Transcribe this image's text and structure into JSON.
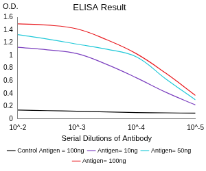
{
  "chart_data": {
    "type": "line",
    "title": "ELISA Result",
    "ylabel": "O.D.",
    "xlabel": "Serial Dilutions of Antibody",
    "log": "x",
    "x": [
      0.01,
      0.00316,
      0.001,
      0.000316,
      0.0001,
      3.16e-05,
      1e-05
    ],
    "series": [
      {
        "name": "Control Antigen = 100ng",
        "color": "#000000",
        "values": [
          0.14,
          0.13,
          0.12,
          0.11,
          0.1,
          0.095,
          0.09
        ]
      },
      {
        "name": "Antigen= 10ng",
        "color": "#7b3fbf",
        "values": [
          1.13,
          1.09,
          1.03,
          0.86,
          0.65,
          0.42,
          0.22
        ]
      },
      {
        "name": "Antigen= 50ng",
        "color": "#1fc8d8",
        "values": [
          1.33,
          1.26,
          1.18,
          1.1,
          0.98,
          0.63,
          0.3
        ]
      },
      {
        "name": "Antigen= 100ng",
        "color": "#e8191e",
        "values": [
          1.5,
          1.48,
          1.42,
          1.25,
          1.03,
          0.72,
          0.37
        ]
      }
    ],
    "xlim": [
      0.01,
      1e-05
    ],
    "xticks": [
      {
        "value": 0.01,
        "label": "10^-2"
      },
      {
        "value": 0.001,
        "label": "10^-3"
      },
      {
        "value": 0.0001,
        "label": "10^-4"
      },
      {
        "value": 1e-05,
        "label": "10^-5"
      }
    ],
    "ylim": [
      0,
      1.6
    ],
    "yticks": [
      0,
      0.2,
      0.4,
      0.6,
      0.8,
      1,
      1.2,
      1.4,
      1.6
    ],
    "grid": false,
    "legend": "bottom"
  }
}
